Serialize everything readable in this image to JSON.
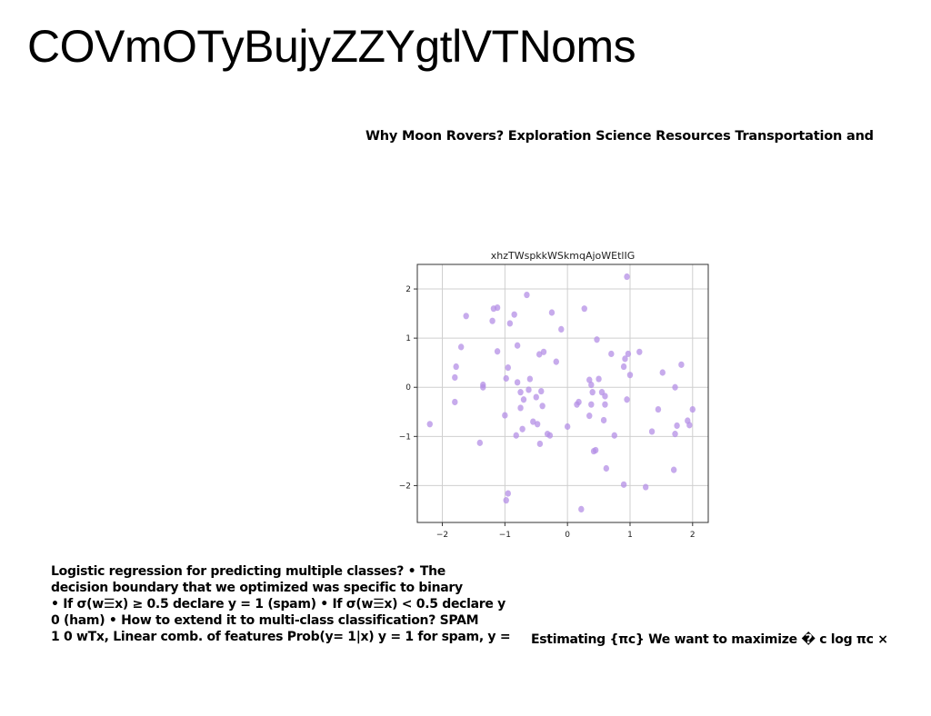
{
  "page": {
    "title": "COVmOTyBujyZZYgtlVTNoms",
    "subtitle": "Why Moon Rovers? Exploration Science Resources Transportation and",
    "paragraph_lines": [
      "Logistic regression for predicting multiple classes? • The",
      "decision boundary that we optimized was specific to binary",
      "• If σ(w☰x) ≥ 0.5 declare y = 1 (spam) • If σ(w☰x) < 0.5 declare y",
      "0 (ham) • How to extend it to multi-class classification? SPAM",
      "1 0 wTx, Linear comb. of features Prob(y= 1|x) y = 1 for spam, y ="
    ],
    "note": "Estimating {πc} We want to maximize � c log πc ×"
  },
  "chart_data": {
    "type": "scatter",
    "title": "xhzTWspkkWSkmqAjoWEtlIG",
    "xlabel": "",
    "ylabel": "",
    "xlim": [
      -2.4,
      2.25
    ],
    "ylim": [
      -2.75,
      2.5
    ],
    "xticks": [
      -2,
      -1,
      0,
      1,
      2
    ],
    "yticks": [
      -2,
      -1,
      0,
      1,
      2
    ],
    "grid": true,
    "color": "#b48fe6",
    "points": [
      [
        -2.2,
        -0.75
      ],
      [
        -1.8,
        0.2
      ],
      [
        -1.78,
        0.42
      ],
      [
        -1.8,
        -0.3
      ],
      [
        -1.7,
        0.82
      ],
      [
        -1.62,
        1.45
      ],
      [
        -1.4,
        -1.13
      ],
      [
        -1.35,
        0.05
      ],
      [
        -1.35,
        0.0
      ],
      [
        -1.2,
        1.35
      ],
      [
        -1.18,
        1.6
      ],
      [
        -1.12,
        1.62
      ],
      [
        -1.12,
        0.73
      ],
      [
        -1.0,
        -0.57
      ],
      [
        -0.98,
        0.18
      ],
      [
        -0.95,
        0.4
      ],
      [
        -0.98,
        -2.3
      ],
      [
        -0.95,
        -2.16
      ],
      [
        -0.92,
        1.3
      ],
      [
        -0.85,
        1.48
      ],
      [
        -0.82,
        -0.98
      ],
      [
        -0.8,
        0.85
      ],
      [
        -0.8,
        0.1
      ],
      [
        -0.75,
        -0.1
      ],
      [
        -0.75,
        -0.42
      ],
      [
        -0.72,
        -0.85
      ],
      [
        -0.7,
        -0.25
      ],
      [
        -0.65,
        1.88
      ],
      [
        -0.62,
        -0.05
      ],
      [
        -0.6,
        0.17
      ],
      [
        -0.55,
        -0.7
      ],
      [
        -0.5,
        -0.2
      ],
      [
        -0.48,
        -0.75
      ],
      [
        -0.45,
        0.67
      ],
      [
        -0.44,
        -1.15
      ],
      [
        -0.42,
        -0.08
      ],
      [
        -0.4,
        -0.38
      ],
      [
        -0.38,
        0.72
      ],
      [
        -0.32,
        -0.95
      ],
      [
        -0.28,
        -0.98
      ],
      [
        -0.25,
        1.52
      ],
      [
        -0.18,
        0.52
      ],
      [
        -0.1,
        1.18
      ],
      [
        0.0,
        -0.8
      ],
      [
        0.15,
        -0.35
      ],
      [
        0.18,
        -0.3
      ],
      [
        0.22,
        -2.48
      ],
      [
        0.27,
        1.6
      ],
      [
        0.35,
        -0.58
      ],
      [
        0.35,
        0.15
      ],
      [
        0.38,
        -0.35
      ],
      [
        0.38,
        0.05
      ],
      [
        0.4,
        -0.1
      ],
      [
        0.42,
        -1.3
      ],
      [
        0.45,
        -1.28
      ],
      [
        0.47,
        0.97
      ],
      [
        0.5,
        0.17
      ],
      [
        0.55,
        -0.1
      ],
      [
        0.58,
        -0.67
      ],
      [
        0.6,
        -0.18
      ],
      [
        0.6,
        -0.35
      ],
      [
        0.62,
        -1.65
      ],
      [
        0.7,
        0.68
      ],
      [
        0.75,
        -0.98
      ],
      [
        0.9,
        -1.98
      ],
      [
        0.9,
        0.42
      ],
      [
        0.92,
        0.58
      ],
      [
        0.95,
        -0.25
      ],
      [
        0.95,
        2.25
      ],
      [
        0.97,
        0.68
      ],
      [
        1.0,
        0.25
      ],
      [
        1.15,
        0.72
      ],
      [
        1.25,
        -2.03
      ],
      [
        1.35,
        -0.9
      ],
      [
        1.45,
        -0.45
      ],
      [
        1.52,
        0.3
      ],
      [
        1.7,
        -1.68
      ],
      [
        1.72,
        -0.95
      ],
      [
        1.72,
        0.0
      ],
      [
        1.75,
        -0.78
      ],
      [
        1.82,
        0.46
      ],
      [
        1.92,
        -0.68
      ],
      [
        1.95,
        -0.77
      ],
      [
        2.0,
        -0.45
      ]
    ]
  }
}
